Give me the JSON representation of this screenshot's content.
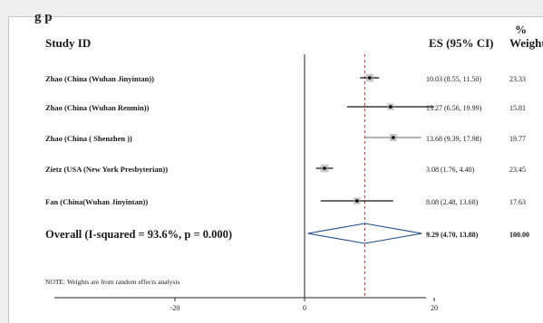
{
  "heading_fragment": "g p",
  "chart_data": {
    "type": "forest",
    "columns": {
      "study": "Study ID",
      "es": "ES (95% CI)",
      "weight_top": "%",
      "weight": "Weight"
    },
    "x_axis": {
      "ticks": [
        -20,
        0,
        20
      ],
      "tick_labels": [
        "-20",
        "0",
        "20"
      ],
      "range": [
        -38,
        38
      ],
      "null_line": 0
    },
    "reference_line": 9.29,
    "studies": [
      {
        "label": "Zhao (China (Wuhan Jinyintan))",
        "es": 10.03,
        "lower": 8.55,
        "upper": 11.5,
        "es_text": "10.03 (8.55, 11.50)",
        "weight": "23.33"
      },
      {
        "label": "Zhao (China (Wuhan Renmin))",
        "es": 13.27,
        "lower": 6.56,
        "upper": 19.99,
        "es_text": "13.27 (6.56, 19.99)",
        "weight": "15.81"
      },
      {
        "label": "Zhao (China ( Shenzhen ))",
        "es": 13.68,
        "lower": 9.39,
        "upper": 17.98,
        "es_text": "13.68 (9.39, 17.98)",
        "weight": "19.77"
      },
      {
        "label": "Zietz (USA (New York Presbyterian))",
        "es": 3.08,
        "lower": 1.76,
        "upper": 4.4,
        "es_text": "3.08 (1.76, 4.40)",
        "weight": "23.45"
      },
      {
        "label": "Fan (China(Wuhan Jinyintan))",
        "es": 8.08,
        "lower": 2.48,
        "upper": 13.68,
        "es_text": "8.08 (2.48, 13.68)",
        "weight": "17.63"
      }
    ],
    "overall": {
      "label": "Overall  (I-squared = 93.6%, p = 0.000)",
      "es": 9.29,
      "lower": 4.7,
      "upper": 13.88,
      "es_text": "9.29 (4.70, 13.88)",
      "weight": "100.00"
    },
    "note": "NOTE: Weights are from random effects analysis"
  }
}
